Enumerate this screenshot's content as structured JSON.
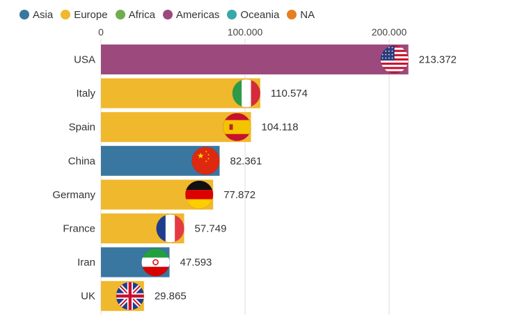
{
  "legend": [
    {
      "label": "Asia",
      "color": "#3a77a0"
    },
    {
      "label": "Europe",
      "color": "#f0b82d"
    },
    {
      "label": "Africa",
      "color": "#6fae4c"
    },
    {
      "label": "Americas",
      "color": "#9c4a7d"
    },
    {
      "label": "Oceania",
      "color": "#35a8a8"
    },
    {
      "label": "NA",
      "color": "#e67e22"
    }
  ],
  "chart_data": {
    "type": "bar",
    "orientation": "horizontal",
    "categories": [
      "USA",
      "Italy",
      "Spain",
      "China",
      "Germany",
      "France",
      "Iran",
      "UK"
    ],
    "values": [
      213372,
      110574,
      104118,
      82361,
      77872,
      57749,
      47593,
      29865
    ],
    "value_labels": [
      "213.372",
      "110.574",
      "104.118",
      "82.361",
      "77.872",
      "57.749",
      "47.593",
      "29.865"
    ],
    "regions": [
      "Americas",
      "Europe",
      "Europe",
      "Asia",
      "Europe",
      "Europe",
      "Asia",
      "Europe"
    ],
    "flags": [
      "usa-flag",
      "italy-flag",
      "spain-flag",
      "china-flag",
      "germany-flag",
      "france-flag",
      "iran-flag",
      "uk-flag"
    ],
    "xaxis": {
      "ticks": [
        0,
        100000,
        200000
      ],
      "tick_labels": [
        "0",
        "100.000",
        "200.000"
      ],
      "position": "top"
    },
    "xlim": [
      0,
      200000
    ],
    "grid": true,
    "legend_position": "top-left"
  }
}
